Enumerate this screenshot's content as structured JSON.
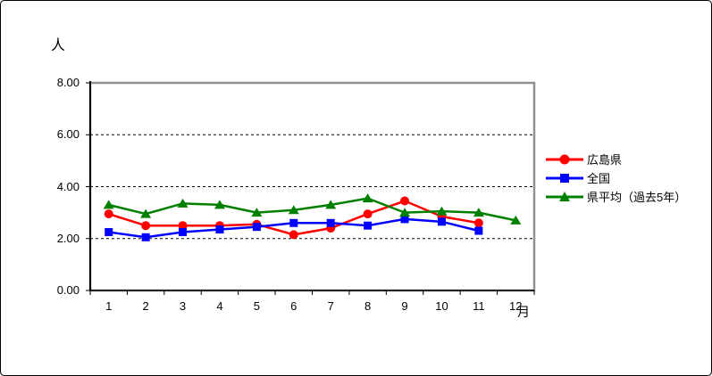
{
  "window": {
    "background": "#ffffff",
    "border_color": "#000000",
    "plot_border_color": "#909090",
    "axis_color": "#000000",
    "gridline_color": "#000000"
  },
  "chart_data": {
    "type": "line",
    "title": "",
    "ylabel": "人",
    "xlabel": "月",
    "ylim": [
      0,
      8
    ],
    "y_tick_step": 2,
    "y_ticks": [
      "0.00",
      "2.00",
      "4.00",
      "6.00",
      "8.00"
    ],
    "categories": [
      "1",
      "2",
      "3",
      "4",
      "5",
      "6",
      "7",
      "8",
      "9",
      "10",
      "11",
      "12"
    ],
    "grid": "horizontal dashed at 2.00, 4.00, 6.00",
    "legend_position": "right",
    "series": [
      {
        "name": "広島県",
        "color": "#ff0000",
        "marker": "circle",
        "values": [
          2.95,
          2.5,
          2.5,
          2.5,
          2.55,
          2.15,
          2.4,
          2.95,
          3.45,
          2.85,
          2.6,
          null
        ]
      },
      {
        "name": "全国",
        "color": "#0000ff",
        "marker": "square",
        "values": [
          2.25,
          2.05,
          2.25,
          2.35,
          2.45,
          2.6,
          2.6,
          2.5,
          2.75,
          2.65,
          2.3,
          null
        ]
      },
      {
        "name": "県平均（過去5年）",
        "color": "#008000",
        "marker": "triangle",
        "values": [
          3.3,
          2.95,
          3.35,
          3.3,
          3.0,
          3.1,
          3.3,
          3.55,
          3.0,
          3.05,
          3.0,
          2.7
        ]
      }
    ]
  }
}
